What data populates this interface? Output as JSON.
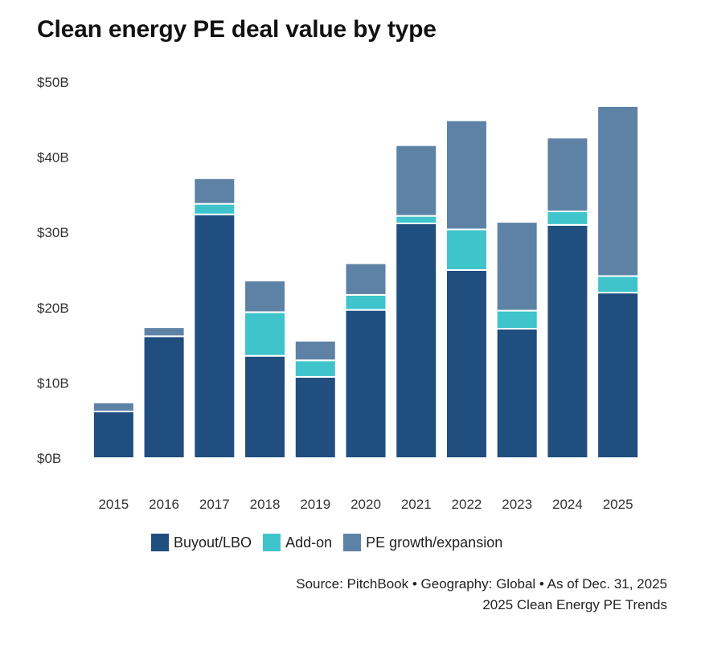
{
  "title": "Clean energy PE deal value by type",
  "chart_data": {
    "type": "bar",
    "stacked": true,
    "categories": [
      "2015",
      "2016",
      "2017",
      "2018",
      "2019",
      "2020",
      "2021",
      "2022",
      "2023",
      "2024",
      "2025"
    ],
    "series": [
      {
        "name": "Buyout/LBO",
        "color": "#1f4e7f",
        "values": [
          6.2,
          16.2,
          32.4,
          13.6,
          10.8,
          19.7,
          31.2,
          25.0,
          17.2,
          31.0,
          22.0
        ]
      },
      {
        "name": "Add-on",
        "color": "#3fc4cc",
        "values": [
          0.0,
          0.0,
          1.4,
          5.8,
          2.2,
          2.0,
          1.0,
          5.4,
          2.4,
          1.8,
          2.2
        ]
      },
      {
        "name": "PE growth/expansion",
        "color": "#5e82a6",
        "values": [
          1.2,
          1.2,
          3.4,
          4.2,
          2.6,
          4.2,
          9.4,
          14.5,
          11.8,
          9.8,
          22.6
        ]
      }
    ],
    "yticks": [
      "$0B",
      "$10B",
      "$20B",
      "$30B",
      "$40B",
      "$50B"
    ],
    "ylim": [
      0,
      50
    ],
    "grid": false,
    "legend": "bottom"
  },
  "footer": {
    "source": "Source: PitchBook • Geography: Global • As of Dec. 31, 2025",
    "report": "2025 Clean Energy PE Trends"
  }
}
